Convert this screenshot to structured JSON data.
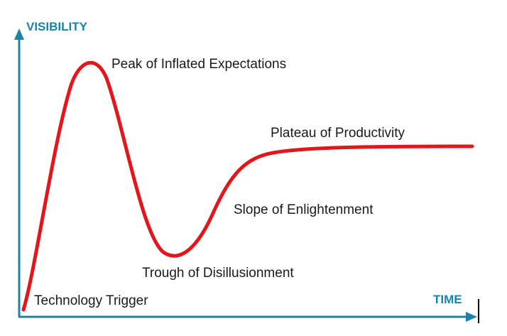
{
  "axes": {
    "y_label": "VISIBILITY",
    "x_label": "TIME",
    "color": "#1b84a6"
  },
  "curve": {
    "color": "#e3161b"
  },
  "phases": [
    {
      "label": "Technology Trigger"
    },
    {
      "label": "Peak of Inflated Expectations"
    },
    {
      "label": "Trough of Disillusionment"
    },
    {
      "label": "Slope of Enlightenment"
    },
    {
      "label": "Plateau of Productivity"
    }
  ]
}
